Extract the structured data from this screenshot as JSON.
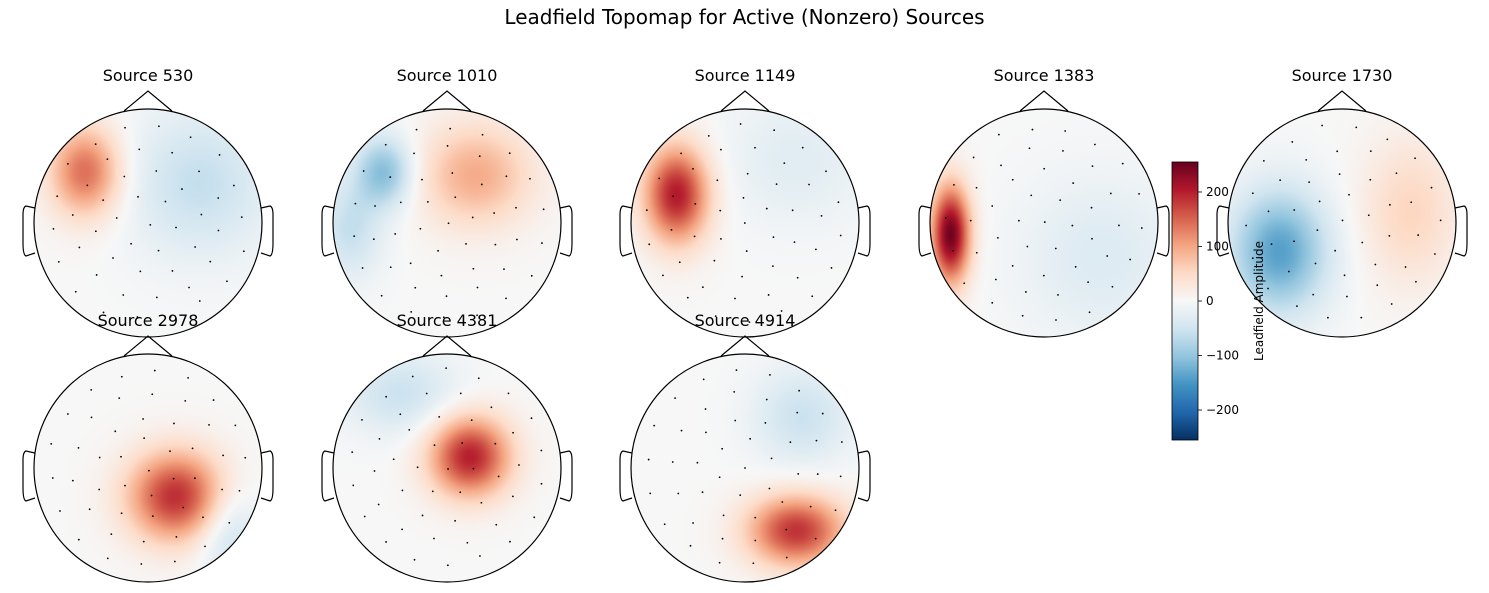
{
  "title": "Leadfield Topomap for Active (Nonzero) Sources",
  "chart_data": {
    "type": "heatmap",
    "title": "Leadfield Topomap for Active (Nonzero) Sources",
    "colormap": "RdBu_r",
    "vlim": [
      -255,
      255
    ],
    "colorbar": {
      "label": "Leadfield Amplitude",
      "ticks": [
        -200,
        -100,
        0,
        100,
        200
      ],
      "tick_labels": [
        "−200",
        "−100",
        "0",
        "100",
        "200"
      ]
    },
    "topomaps": [
      {
        "label": "Source 530",
        "blobs": [
          {
            "u": -0.55,
            "v": -0.45,
            "amp": 145,
            "sx": 0.22,
            "sy": 0.28
          },
          {
            "u": 0.45,
            "v": -0.35,
            "amp": -60,
            "sx": 0.45,
            "sy": 0.45
          }
        ]
      },
      {
        "label": "Source 1010",
        "blobs": [
          {
            "u": 0.25,
            "v": -0.42,
            "amp": 95,
            "sx": 0.35,
            "sy": 0.32
          },
          {
            "u": -0.55,
            "v": -0.45,
            "amp": -110,
            "sx": 0.18,
            "sy": 0.22
          },
          {
            "u": -0.85,
            "v": 0.05,
            "amp": -60,
            "sx": 0.2,
            "sy": 0.3
          }
        ]
      },
      {
        "label": "Source 1149",
        "blobs": [
          {
            "u": -0.6,
            "v": -0.25,
            "amp": 205,
            "sx": 0.2,
            "sy": 0.3
          },
          {
            "u": 0.45,
            "v": -0.55,
            "amp": -30,
            "sx": 0.45,
            "sy": 0.4
          }
        ]
      },
      {
        "label": "Source 1383",
        "blobs": [
          {
            "u": -0.82,
            "v": 0.1,
            "amp": 250,
            "sx": 0.12,
            "sy": 0.3
          },
          {
            "u": 0.5,
            "v": 0.3,
            "amp": -35,
            "sx": 0.5,
            "sy": 0.5
          }
        ]
      },
      {
        "label": "Source 1730",
        "blobs": [
          {
            "u": -0.55,
            "v": 0.25,
            "amp": -140,
            "sx": 0.3,
            "sy": 0.38
          },
          {
            "u": 0.6,
            "v": -0.1,
            "amp": 55,
            "sx": 0.3,
            "sy": 0.45
          }
        ]
      },
      {
        "label": "Source 2978",
        "blobs": [
          {
            "u": 0.25,
            "v": 0.25,
            "amp": 190,
            "sx": 0.3,
            "sy": 0.28
          },
          {
            "u": 0.7,
            "v": 0.55,
            "amp": -60,
            "sx": 0.2,
            "sy": 0.3
          }
        ]
      },
      {
        "label": "Source 4381",
        "blobs": [
          {
            "u": 0.2,
            "v": -0.1,
            "amp": 200,
            "sx": 0.25,
            "sy": 0.25
          },
          {
            "u": -0.4,
            "v": -0.65,
            "amp": -55,
            "sx": 0.35,
            "sy": 0.25
          }
        ]
      },
      {
        "label": "Source 4914",
        "blobs": [
          {
            "u": 0.45,
            "v": 0.55,
            "amp": 185,
            "sx": 0.3,
            "sy": 0.22
          },
          {
            "u": 0.5,
            "v": -0.45,
            "amp": -55,
            "sx": 0.3,
            "sy": 0.3
          }
        ]
      }
    ]
  }
}
